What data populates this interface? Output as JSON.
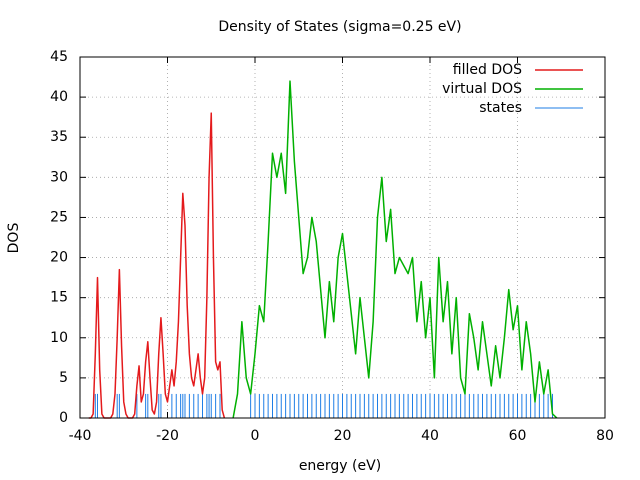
{
  "chart_data": {
    "type": "line",
    "title": "Density of States (sigma=0.25 eV)",
    "xlabel": "energy (eV)",
    "ylabel": "DOS",
    "xlim": [
      -40,
      80
    ],
    "ylim": [
      0,
      45
    ],
    "xticks": [
      -40,
      -20,
      0,
      20,
      40,
      60,
      80
    ],
    "yticks": [
      0,
      5,
      10,
      15,
      20,
      25,
      30,
      35,
      40,
      45
    ],
    "grid": true,
    "legend": "top-right",
    "series": [
      {
        "name": "filled DOS",
        "color": "#e41a1c",
        "style": "line",
        "x": [
          -38,
          -37.5,
          -37,
          -36.5,
          -36,
          -35.5,
          -35,
          -34.5,
          -34,
          -33.5,
          -33,
          -32.5,
          -32,
          -31.5,
          -31,
          -30.5,
          -30,
          -29.5,
          -29,
          -28.5,
          -28,
          -27.5,
          -27,
          -26.5,
          -26,
          -25.5,
          -25,
          -24.5,
          -24,
          -23.5,
          -23,
          -22.5,
          -22,
          -21.5,
          -21,
          -20.5,
          -20,
          -19.5,
          -19,
          -18.5,
          -18,
          -17.5,
          -17,
          -16.5,
          -16,
          -15.5,
          -15,
          -14.5,
          -14,
          -13.5,
          -13,
          -12.5,
          -12,
          -11.5,
          -11,
          -10.5,
          -10,
          -9.5,
          -9,
          -8.5,
          -8,
          -7.5,
          -7
        ],
        "values": [
          0,
          0,
          0.5,
          8,
          17.5,
          6,
          0.5,
          0,
          0,
          0,
          0,
          0.5,
          3,
          10,
          18.5,
          9,
          2,
          0.5,
          0,
          0,
          0,
          0.5,
          4,
          6.5,
          2,
          3,
          7,
          9.5,
          5,
          1,
          0.5,
          2,
          8,
          12.5,
          8,
          3,
          2,
          4,
          6,
          4,
          7,
          12,
          20,
          28,
          24,
          14,
          8,
          5,
          4,
          6,
          8,
          5,
          3,
          5,
          15,
          30,
          38,
          20,
          7,
          6,
          7,
          1,
          0
        ]
      },
      {
        "name": "virtual DOS",
        "color": "#00b000",
        "style": "line",
        "x": [
          -5,
          -4,
          -3,
          -2,
          -1,
          0,
          1,
          2,
          3,
          4,
          5,
          6,
          7,
          8,
          9,
          10,
          11,
          12,
          13,
          14,
          15,
          16,
          17,
          18,
          19,
          20,
          21,
          22,
          23,
          24,
          25,
          26,
          27,
          28,
          29,
          30,
          31,
          32,
          33,
          34,
          35,
          36,
          37,
          38,
          39,
          40,
          41,
          42,
          43,
          44,
          45,
          46,
          47,
          48,
          49,
          50,
          51,
          52,
          53,
          54,
          55,
          56,
          57,
          58,
          59,
          60,
          61,
          62,
          63,
          64,
          65,
          66,
          67,
          68,
          69
        ],
        "values": [
          0,
          3,
          12,
          5,
          3,
          8,
          14,
          12,
          22,
          33,
          30,
          33,
          28,
          42,
          32,
          25,
          18,
          20,
          25,
          22,
          16,
          10,
          17,
          12,
          20,
          23,
          18,
          13,
          8,
          15,
          10,
          5,
          12,
          25,
          30,
          22,
          26,
          18,
          20,
          19,
          18,
          20,
          12,
          17,
          10,
          15,
          5,
          20,
          12,
          17,
          8,
          15,
          5,
          3,
          13,
          10,
          6,
          12,
          8,
          4,
          9,
          5,
          10,
          16,
          11,
          14,
          6,
          12,
          8,
          2,
          7,
          3,
          6,
          0.5,
          0
        ]
      },
      {
        "name": "states",
        "color": "#1e7ee6",
        "style": "impulses",
        "x": [
          -36.5,
          -36,
          -31.5,
          -31,
          -27,
          -25,
          -24.5,
          -22,
          -21.5,
          -19,
          -18,
          -17,
          -16.5,
          -16,
          -15,
          -14,
          -13,
          -12,
          -11,
          -10.5,
          -10,
          -9,
          -8,
          -1,
          0,
          1,
          2,
          3,
          4,
          5,
          6,
          7,
          8,
          9,
          10,
          11,
          12,
          13,
          14,
          15,
          16,
          17,
          18,
          19,
          20,
          21,
          22,
          23,
          24,
          25,
          26,
          27,
          28,
          29,
          30,
          31,
          32,
          33,
          34,
          35,
          36,
          37,
          38,
          39,
          40,
          41,
          42,
          43,
          44,
          45,
          46,
          47,
          48,
          49,
          50,
          51,
          52,
          53,
          54,
          55,
          56,
          57,
          58,
          59,
          60,
          61,
          62,
          63,
          64,
          65,
          66,
          67,
          68
        ],
        "values": [
          3,
          3,
          3,
          3,
          3,
          3,
          3,
          3,
          3,
          3,
          3,
          3,
          3,
          3,
          3,
          3,
          3,
          3,
          3,
          3,
          3,
          3,
          3,
          3,
          3,
          3,
          3,
          3,
          3,
          3,
          3,
          3,
          3,
          3,
          3,
          3,
          3,
          3,
          3,
          3,
          3,
          3,
          3,
          3,
          3,
          3,
          3,
          3,
          3,
          3,
          3,
          3,
          3,
          3,
          3,
          3,
          3,
          3,
          3,
          3,
          3,
          3,
          3,
          3,
          3,
          3,
          3,
          3,
          3,
          3,
          3,
          3,
          3,
          3,
          3,
          3,
          3,
          3,
          3,
          3,
          3,
          3,
          3,
          3,
          3,
          3,
          3,
          3,
          3,
          3,
          3,
          3,
          3
        ]
      }
    ]
  }
}
